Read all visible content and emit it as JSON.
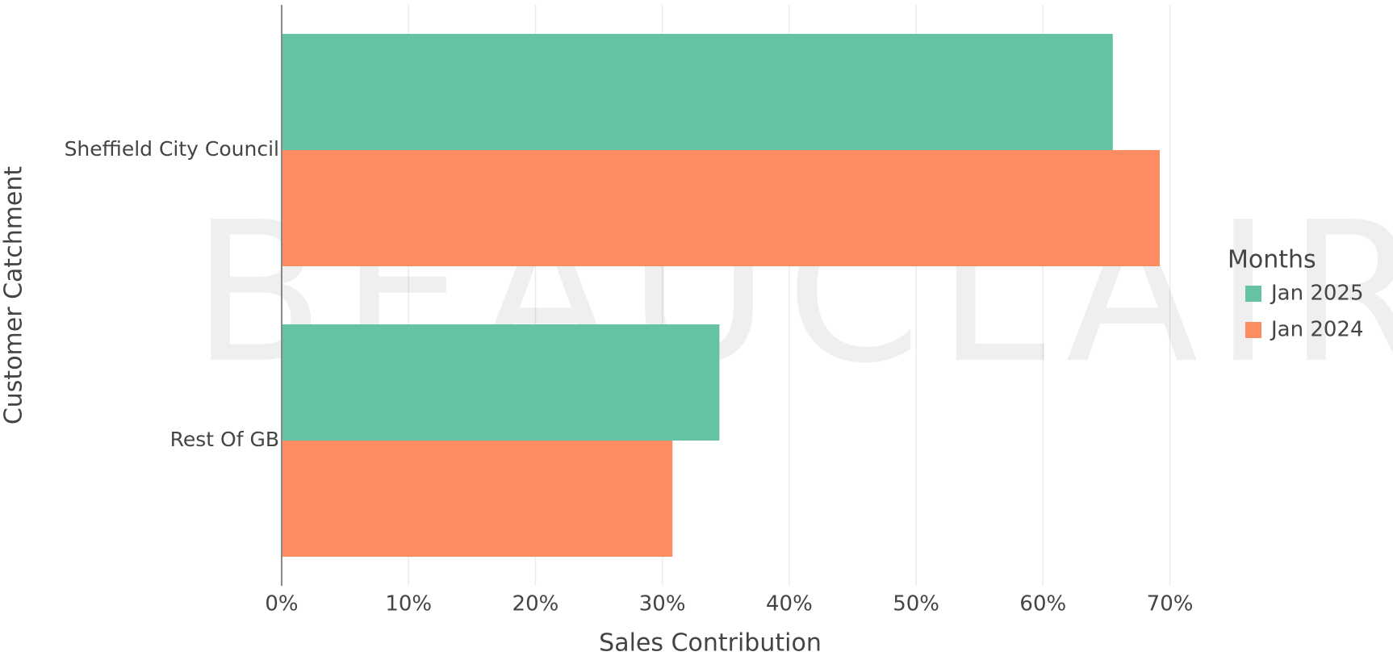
{
  "chart_data": {
    "type": "barh",
    "xlabel": "Sales Contribution",
    "ylabel": "Customer Catchment",
    "watermark": "BEAUCLAIR",
    "categories": [
      "Sheffield City Council",
      "Rest Of GB"
    ],
    "series": [
      {
        "name": "Jan 2025",
        "color": "#66c2a5",
        "values": [
          65.5,
          34.5
        ]
      },
      {
        "name": "Jan 2024",
        "color": "#fc8d62",
        "values": [
          69.2,
          30.8
        ]
      }
    ],
    "xlim": [
      0,
      72
    ],
    "xticks": [
      {
        "value": 0,
        "label": "0%"
      },
      {
        "value": 10,
        "label": "10%"
      },
      {
        "value": 20,
        "label": "20%"
      },
      {
        "value": 30,
        "label": "30%"
      },
      {
        "value": 40,
        "label": "40%"
      },
      {
        "value": 50,
        "label": "50%"
      },
      {
        "value": 60,
        "label": "60%"
      },
      {
        "value": 70,
        "label": "70%"
      }
    ],
    "grid": true,
    "legend": {
      "title": "Months",
      "position": "right"
    }
  }
}
